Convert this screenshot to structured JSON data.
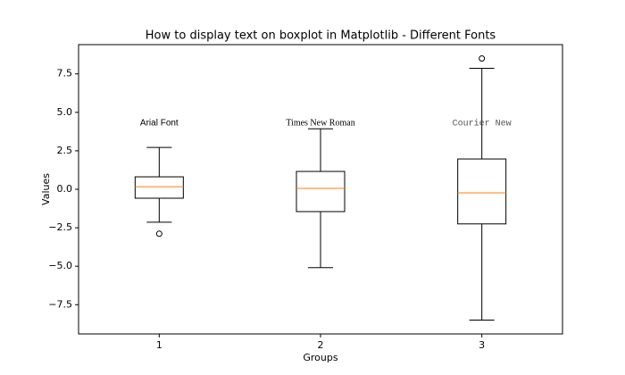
{
  "chart_data": {
    "type": "box",
    "title": "How to display text on boxplot in Matplotlib - Different Fonts",
    "x_label": "Groups",
    "y_label": "Values",
    "categories": [
      "1",
      "2",
      "3"
    ],
    "boxes": [
      {
        "whisker_low": -2.14,
        "q1": -0.58,
        "median": 0.17,
        "q3": 0.81,
        "whisker_high": 2.72,
        "outliers": [
          -2.89
        ]
      },
      {
        "whisker_low": -5.09,
        "q1": -1.45,
        "median": 0.06,
        "q3": 1.16,
        "whisker_high": 3.93,
        "outliers": []
      },
      {
        "whisker_low": -8.5,
        "q1": -2.25,
        "median": -0.23,
        "q3": 1.97,
        "whisker_high": 7.86,
        "outliers": [
          8.5
        ]
      }
    ],
    "annotations": [
      "Arial Font",
      "Times New Roman",
      "Courier New"
    ],
    "box_color": "#000000",
    "median_color": "#ff7f0e",
    "ylim": [
      -9.4,
      9.4
    ],
    "yticks": [
      {
        "value": -7.5,
        "label": "−7.5"
      },
      {
        "value": -5,
        "label": "−5.0"
      },
      {
        "value": -2.5,
        "label": "−2.5"
      },
      {
        "value": 0,
        "label": "0.0"
      },
      2.5,
      {
        "value": 5,
        "label": "5.0"
      },
      7.5
    ]
  }
}
